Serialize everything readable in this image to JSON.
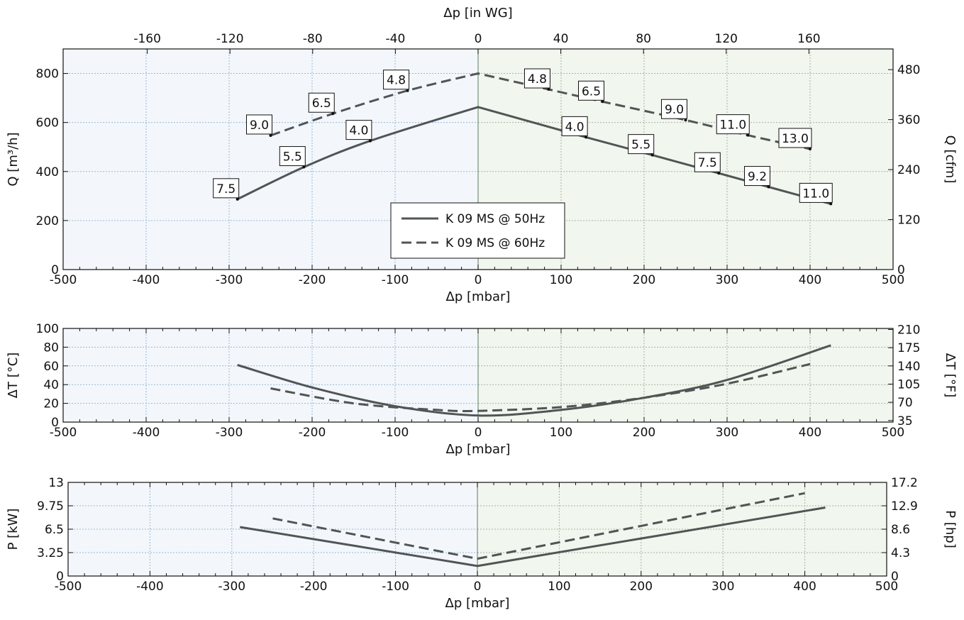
{
  "chart_data": [
    {
      "type": "line",
      "title": "",
      "xlabel": "Δp [mbar]",
      "ylabel": "Q [m³/h]",
      "x2label": "Δp [in WG]",
      "y2label": "Q [cfm]",
      "xlim": [
        -500,
        500
      ],
      "ylim": [
        0,
        900
      ],
      "x2lim": [
        -200.7,
        200.7
      ],
      "y2lim": [
        0,
        529.7
      ],
      "xticks": [
        -500,
        -400,
        -300,
        -200,
        -100,
        0,
        100,
        200,
        300,
        400,
        500
      ],
      "yticks": [
        0,
        200,
        400,
        600,
        800
      ],
      "x2ticks": [
        -160,
        -120,
        -80,
        -40,
        0,
        40,
        80,
        120,
        160
      ],
      "y2ticks": [
        0,
        120,
        240,
        360,
        480
      ],
      "grid": true,
      "legend_position": "bottom-center",
      "series": [
        {
          "name": "K 09 MS @ 50Hz",
          "style": "solid",
          "x": [
            -290,
            -210,
            -130,
            0,
            130,
            210,
            290,
            350,
            425
          ],
          "y": [
            287,
            418,
            525,
            663,
            540,
            467,
            393,
            337,
            268
          ],
          "point_labels": [
            "7.5",
            "5.5",
            "4.0",
            "",
            "4.0",
            "5.5",
            "7.5",
            "9.2",
            "11.0"
          ]
        },
        {
          "name": "K 09 MS @ 60Hz",
          "style": "dashed",
          "x": [
            -250,
            -175,
            -85,
            0,
            85,
            150,
            250,
            325,
            400
          ],
          "y": [
            547,
            636,
            730,
            800,
            735,
            685,
            610,
            548,
            492
          ],
          "point_labels": [
            "9.0",
            "6.5",
            "4.8",
            "",
            "4.8",
            "6.5",
            "9.0",
            "11.0",
            "13.0"
          ]
        }
      ]
    },
    {
      "type": "line",
      "title": "",
      "xlabel": "Δp [mbar]",
      "ylabel": "ΔT [°C]",
      "y2label": "ΔT [°F]",
      "xlim": [
        -500,
        500
      ],
      "ylim": [
        0,
        100
      ],
      "y2lim": [
        32,
        212
      ],
      "xticks": [
        -500,
        -400,
        -300,
        -200,
        -100,
        0,
        100,
        200,
        300,
        400,
        500
      ],
      "yticks": [
        0,
        20,
        40,
        60,
        80,
        100
      ],
      "y2ticks": [
        35,
        70,
        105,
        140,
        175,
        210
      ],
      "grid": true,
      "series": [
        {
          "name": "K 09 MS @ 50Hz",
          "style": "solid",
          "x": [
            -290,
            -200,
            -100,
            0,
            100,
            200,
            300,
            425
          ],
          "y": [
            61,
            37,
            17,
            7,
            13,
            26,
            45,
            82
          ]
        },
        {
          "name": "K 09 MS @ 60Hz",
          "style": "dashed",
          "x": [
            -250,
            -150,
            -50,
            0,
            100,
            200,
            300,
            400
          ],
          "y": [
            36,
            20,
            13,
            12,
            16,
            26,
            41,
            62
          ]
        }
      ]
    },
    {
      "type": "line",
      "title": "",
      "xlabel": "Δp [mbar]",
      "ylabel": "P [kW]",
      "y2label": "P [hp]",
      "xlim": [
        -500,
        500
      ],
      "ylim": [
        0,
        13
      ],
      "y2lim": [
        0,
        17.2
      ],
      "xticks": [
        -500,
        -400,
        -300,
        -200,
        -100,
        0,
        100,
        200,
        300,
        400,
        500
      ],
      "yticks": [
        0,
        3.25,
        6.5,
        9.75,
        13
      ],
      "ytick_labels": [
        "0",
        "3.25",
        "6.5",
        "9.75",
        "13"
      ],
      "y2ticks": [
        0,
        4.3,
        8.6,
        12.9,
        17.2
      ],
      "grid": true,
      "series": [
        {
          "name": "K 09 MS @ 50Hz",
          "style": "solid",
          "x": [
            -290,
            0,
            425
          ],
          "y": [
            6.8,
            1.4,
            9.5
          ]
        },
        {
          "name": "K 09 MS @ 60Hz",
          "style": "dashed",
          "x": [
            -250,
            0,
            400
          ],
          "y": [
            8.0,
            2.4,
            11.5
          ]
        }
      ]
    }
  ],
  "colors": {
    "line": "#505555",
    "negative_bg": "#f3f7fc",
    "positive_bg": "#f1f6ee",
    "grid_negative": "#9ab7cf",
    "grid_positive": "#a8b4a0",
    "zero_line": "#7a8f7a"
  }
}
